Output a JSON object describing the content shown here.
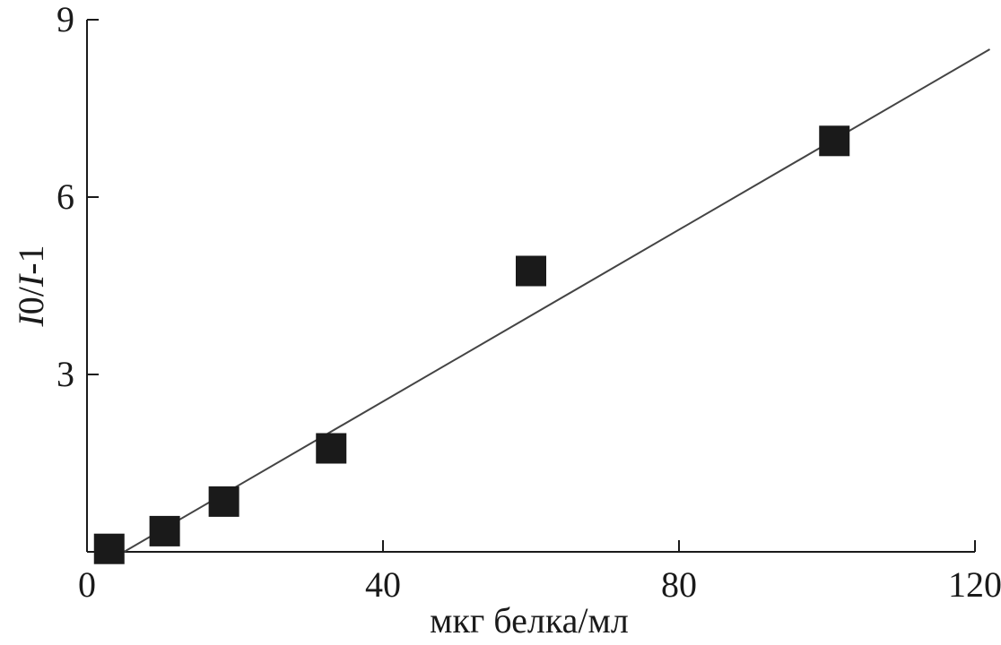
{
  "chart_data": {
    "type": "scatter",
    "title": "",
    "xlabel": "мкг белка/мл",
    "ylabel_italic": "I",
    "ylabel_mid": "0/",
    "ylabel_italic2": "I",
    "ylabel_tail": "-1",
    "xlim": [
      0,
      120
    ],
    "ylim": [
      0,
      9
    ],
    "xticks": [
      0,
      40,
      80,
      120
    ],
    "yticks": [
      3,
      6,
      9
    ],
    "x_tick_labels": [
      "0",
      "40",
      "80",
      "120"
    ],
    "y_tick_labels": [
      "3",
      "6",
      "9"
    ],
    "grid": false,
    "legend": "none",
    "points": [
      {
        "x": 3,
        "y": 0.05
      },
      {
        "x": 10.5,
        "y": 0.35
      },
      {
        "x": 18.5,
        "y": 0.85
      },
      {
        "x": 33,
        "y": 1.75
      },
      {
        "x": 60,
        "y": 4.75
      },
      {
        "x": 101,
        "y": 6.95
      }
    ],
    "fit_line": {
      "x": [
        5,
        122
      ],
      "y": [
        0,
        8.5
      ]
    },
    "marker_color": "#1a1a1a",
    "line_color": "#444444"
  }
}
